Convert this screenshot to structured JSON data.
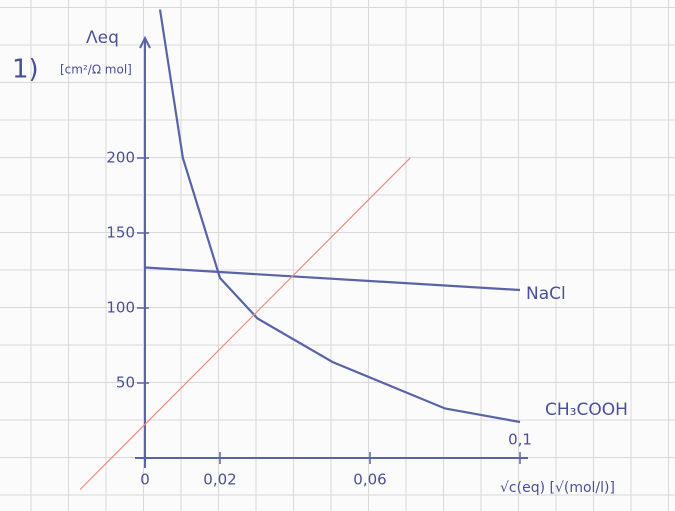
{
  "chart_data": {
    "type": "line",
    "annotation": "1)",
    "y_label": "Λeq",
    "y_unit": "[cm²/Ω mol]",
    "x_label": "√c(eq) [√(mol/l)]",
    "xlim": [
      0,
      0.1
    ],
    "ylim": [
      0,
      280
    ],
    "xticks": [
      0,
      {
        "value": 0.02,
        "label": "0,02"
      },
      {
        "value": 0.06,
        "label": "0,06"
      },
      {
        "value": 0.1,
        "label": "0,1"
      }
    ],
    "yticks": [
      50,
      100,
      150,
      200
    ],
    "axis_color": "#5a63a8",
    "series": [
      {
        "name": "NaCl",
        "color": "#5a63a8",
        "x": [
          0,
          0.1
        ],
        "values": [
          127,
          112
        ]
      },
      {
        "name": "CH₃COOH",
        "color": "#5a63a8",
        "x": [
          0.004,
          0.0101,
          0.02,
          0.03,
          0.05,
          0.08,
          0.1
        ],
        "values": [
          299,
          200,
          120,
          93,
          64,
          33,
          24
        ]
      },
      {
        "color": "#f08a7a",
        "x": [
          -0.0173,
          0.0707
        ],
        "values": [
          -21,
          200
        ]
      }
    ]
  }
}
